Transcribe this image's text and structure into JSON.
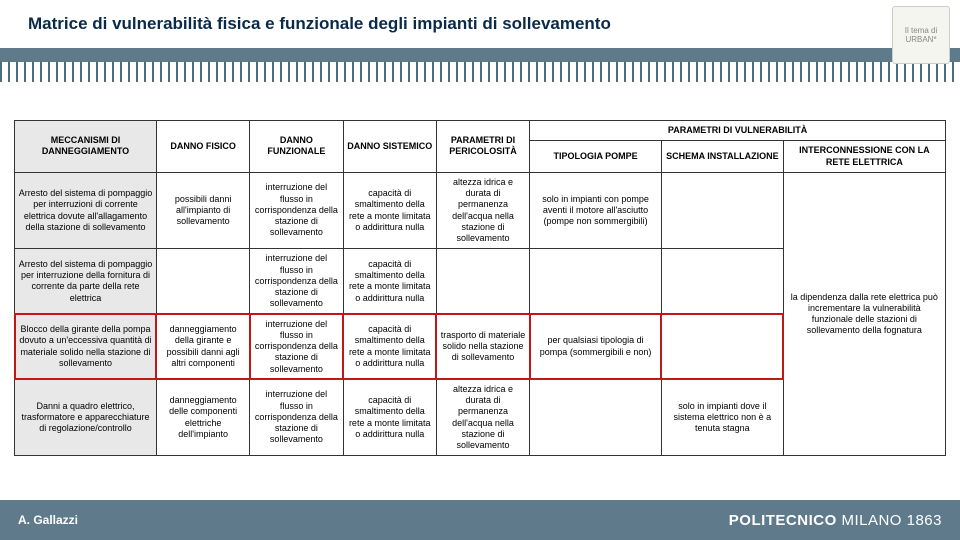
{
  "title": "Matrice di vulnerabilità fisica e funzionale degli impianti di sollevamento",
  "author": "A. Gallazzi",
  "brand_strong": "POLITECNICO",
  "brand_thin": " MILANO 1863",
  "logo_caption": "Il tema di URBAN*",
  "table": {
    "header_top": {
      "mech": "MECCANISMI DI DANNEGGIAMENTO",
      "fisico": "DANNO FISICO",
      "funz": "DANNO FUNZIONALE",
      "sist": "DANNO SISTEMICO",
      "peric": "PARAMETRI DI PERICOLOSITÀ",
      "vuln": "PARAMETRI DI VULNERABILITÀ"
    },
    "header_sub": {
      "tip": "TIPOLOGIA POMPE",
      "sch": "SCHEMA INSTALLAZIONE",
      "int": "INTERCONNESSIONE CON LA RETE ELETTRICA"
    },
    "rows": [
      {
        "mech": "Arresto del sistema di pompaggio per interruzioni di corrente elettrica dovute all'allagamento della stazione di sollevamento",
        "fisico": "possibili danni all'impianto di sollevamento",
        "funz": "interruzione del flusso in corrispondenza della stazione di sollevamento",
        "sist": "capacità di smaltimento della rete a monte limitata o addirittura nulla",
        "peric": "altezza idrica e durata di permanenza dell'acqua nella stazione di sollevamento",
        "tip": "solo in impianti con pompe aventi il motore all'asciutto (pompe non sommergibili)",
        "sch": "",
        "int_rowspan4": "la dipendenza dalla rete elettrica può incrementare la vulnerabilità funzionale delle stazioni di sollevamento della fognatura"
      },
      {
        "mech": "Arresto del sistema di pompaggio per interruzione della fornitura di corrente da parte della rete elettrica",
        "fisico": "",
        "funz": "interruzione del flusso in corrispondenza della stazione di sollevamento",
        "sist": "capacità di smaltimento della rete a monte limitata o addirittura nulla",
        "peric": "",
        "tip": "",
        "sch": ""
      },
      {
        "highlight": true,
        "mech": "Blocco della girante della pompa dovuto a un'eccessiva quantità di materiale solido nella stazione di sollevamento",
        "fisico": "danneggiamento della girante e possibili danni agli altri componenti",
        "funz": "interruzione del flusso in corrispondenza della stazione di sollevamento",
        "sist": "capacità di smaltimento della rete a monte limitata o addirittura nulla",
        "peric": "trasporto di materiale solido nella stazione di sollevamento",
        "tip": "per qualsiasi tipologia di pompa (sommergibili e non)",
        "sch": ""
      },
      {
        "mech": "Danni a quadro elettrico, trasformatore e apparecchiature di regolazione/controllo",
        "fisico": "danneggiamento delle componenti elettriche dell'impianto",
        "funz": "interruzione del flusso in corrispondenza della stazione di sollevamento",
        "sist": "capacità di smaltimento della rete a monte limitata o addirittura nulla",
        "peric": "altezza idrica e durata di permanenza dell'acqua nella stazione di sollevamento",
        "tip": "",
        "sch": "solo in impianti dove il sistema elettrico non è a tenuta stagna"
      }
    ]
  }
}
